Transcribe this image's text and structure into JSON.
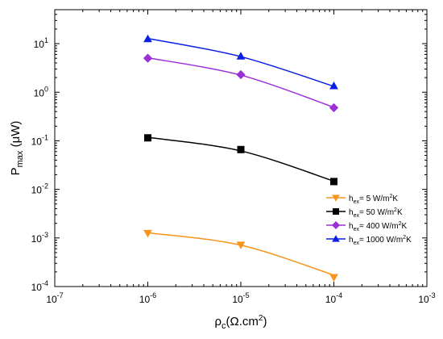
{
  "chart_data": {
    "type": "line",
    "title": "",
    "x_scale": "log",
    "y_scale": "log",
    "xlim": [
      1e-07,
      0.001
    ],
    "ylim": [
      0.0001,
      50
    ],
    "grid": false,
    "legend_position": "bottom-right",
    "xlabel": {
      "main": "ρ",
      "sub": "c",
      "rest": "(Ω.cm",
      "sup": "2",
      "end": ")"
    },
    "ylabel": {
      "main": "P",
      "sub": "max",
      "rest": " (μW)"
    },
    "x_tick_labels": [
      {
        "base": "10",
        "exp": "-7"
      },
      {
        "base": "10",
        "exp": "-6"
      },
      {
        "base": "10",
        "exp": "-5"
      },
      {
        "base": "10",
        "exp": "-4"
      },
      {
        "base": "10",
        "exp": "-3"
      }
    ],
    "y_tick_labels": [
      {
        "base": "10",
        "exp": "-4"
      },
      {
        "base": "10",
        "exp": "-3"
      },
      {
        "base": "10",
        "exp": "-2"
      },
      {
        "base": "10",
        "exp": "-1"
      },
      {
        "base": "10",
        "exp": "0"
      },
      {
        "base": "10",
        "exp": "1"
      }
    ],
    "x": [
      1e-06,
      1e-05,
      0.0001
    ],
    "series": [
      {
        "legend": {
          "a": "h",
          "sub": "ex",
          "b": "= 5 W/m",
          "sup": "2",
          "c": "K"
        },
        "color": "#f7941d",
        "marker": "triangle-down",
        "points": [
          [
            1e-06,
            0.00125
          ],
          [
            1e-05,
            0.00072
          ],
          [
            0.0001,
            0.000155
          ]
        ],
        "fit": [
          [
            1e-06,
            0.00128
          ],
          [
            1e-05,
            0.00071
          ],
          [
            0.0001,
            0.000172
          ]
        ]
      },
      {
        "legend": {
          "a": "h",
          "sub": "ex",
          "b": "= 50 W/m",
          "sup": "2",
          "c": "K"
        },
        "color": "#000000",
        "marker": "square",
        "points": [
          [
            1e-06,
            0.115
          ],
          [
            1e-05,
            0.066
          ],
          [
            0.0001,
            0.0145
          ]
        ],
        "fit": [
          [
            1e-06,
            0.118
          ],
          [
            1e-05,
            0.062
          ],
          [
            0.0001,
            0.0148
          ]
        ]
      },
      {
        "legend": {
          "a": "h",
          "sub": "ex",
          "b": "= 400 W/m",
          "sup": "2",
          "c": "K"
        },
        "color": "#9b30d9",
        "marker": "diamond",
        "points": [
          [
            1e-06,
            5.0
          ],
          [
            1e-05,
            2.3
          ],
          [
            0.0001,
            0.48
          ]
        ],
        "fit": [
          [
            1e-06,
            5.1
          ],
          [
            1e-05,
            2.25
          ],
          [
            0.0001,
            0.49
          ]
        ]
      },
      {
        "legend": {
          "a": "h",
          "sub": "ex",
          "b": "= 1000 W/m",
          "sup": "2",
          "c": "K"
        },
        "color": "#0a1ee6",
        "marker": "triangle-up",
        "points": [
          [
            1e-06,
            12.5
          ],
          [
            1e-05,
            5.5
          ],
          [
            0.0001,
            1.35
          ]
        ],
        "fit": [
          [
            1e-06,
            12.8
          ],
          [
            1e-05,
            5.4
          ],
          [
            0.0001,
            1.32
          ]
        ]
      }
    ]
  }
}
